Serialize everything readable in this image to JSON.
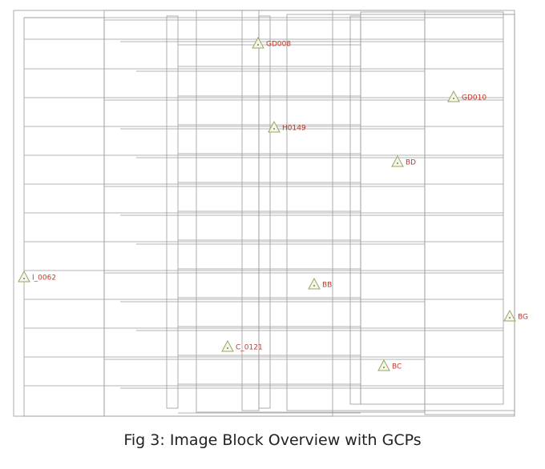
{
  "gcps": [
    {
      "label": "GD008"
    },
    {
      "label": "GD010"
    },
    {
      "label": "H0149"
    },
    {
      "label": "BD"
    },
    {
      "label": "I_0062"
    },
    {
      "label": "BB"
    },
    {
      "label": "BG"
    },
    {
      "label": "C_0121"
    },
    {
      "label": "BC"
    }
  ],
  "caption": "Fig 3: Image Block Overview with GCPs"
}
